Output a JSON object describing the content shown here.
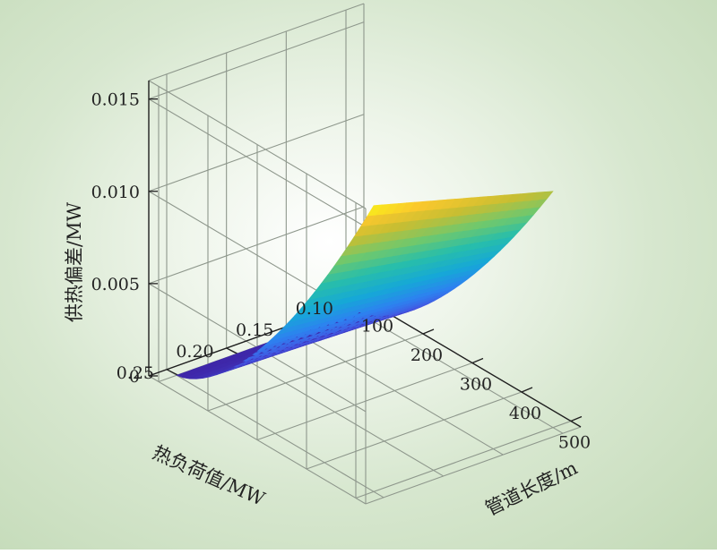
{
  "chart_data": {
    "type": "surface",
    "title": "",
    "xlabel": "管道长度/m",
    "ylabel": "热负荷值/MW",
    "zlabel": "供热偏差/MW",
    "x_ticks": [
      "100",
      "200",
      "300",
      "400",
      "500"
    ],
    "y_ticks": [
      "0.10",
      "0.15",
      "0.20",
      "0.25"
    ],
    "z_ticks": [
      "0",
      "0.005",
      "0.010",
      "0.015"
    ],
    "xlim": [
      80,
      520
    ],
    "ylim": [
      0.085,
      0.265
    ],
    "zlim": [
      0,
      0.016
    ],
    "grid": true,
    "colormap": "parula",
    "x_range": [
      100,
      500
    ],
    "y_range": [
      0.1,
      0.25
    ],
    "corner_values": [
      {
        "x": 100,
        "y": 0.1,
        "z": 0.0
      },
      {
        "x": 100,
        "y": 0.25,
        "z": 0.0
      },
      {
        "x": 500,
        "y": 0.1,
        "z": 0.0128
      },
      {
        "x": 500,
        "y": 0.25,
        "z": 0.0155
      }
    ],
    "colors": {
      "low": "#3d3f9e",
      "mid": "#2aa7c9",
      "high": "#f5de2a"
    }
  }
}
